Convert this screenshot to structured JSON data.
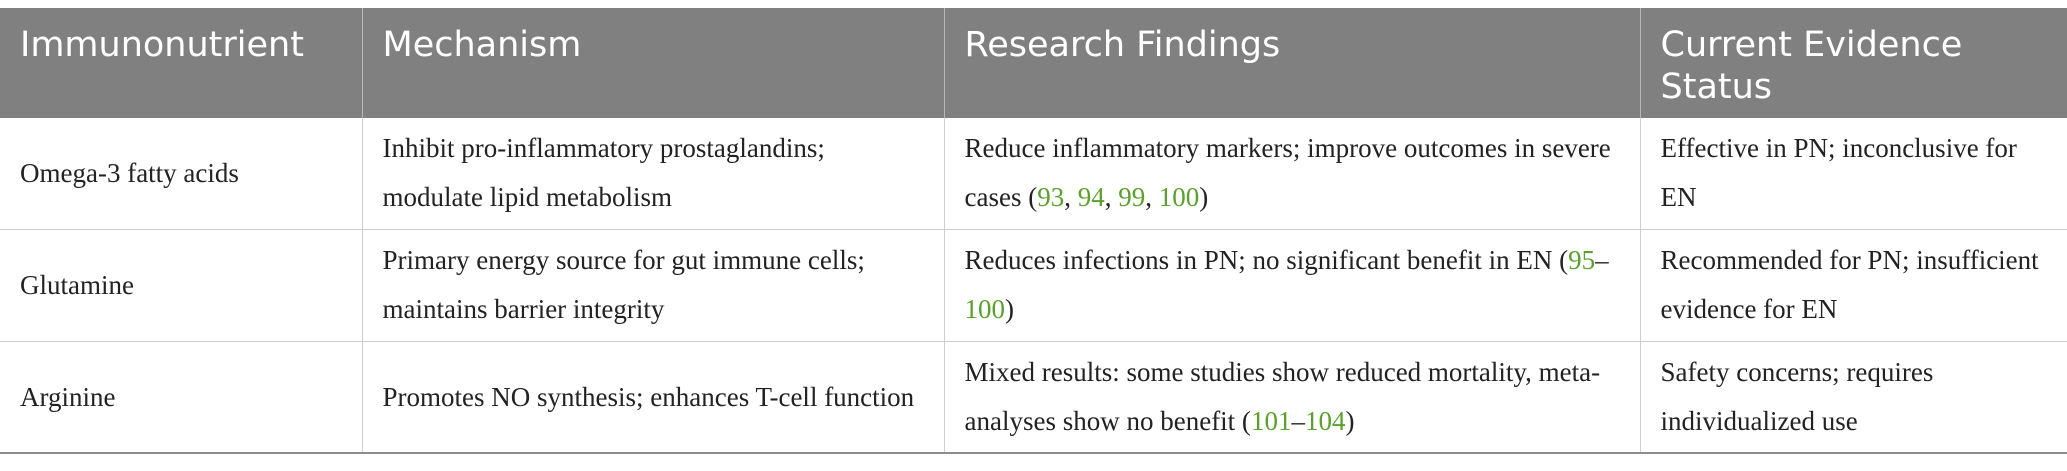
{
  "headers": [
    "Immunonutrient",
    "Mechanism",
    "Research Findings",
    "Current Evidence Status"
  ],
  "colors": {
    "header_bg": "#808080",
    "header_text": "#ffffff",
    "ref_link": "#5aa02c"
  },
  "rows": [
    {
      "immunonutrient": "Omega-3 fatty acids",
      "mechanism": "Inhibit pro-inflammatory prostaglandins; modulate lipid metabolism",
      "findings": {
        "text": "Reduce inflammatory markers; improve outcomes in severe cases (",
        "refs": [
          "93",
          "94",
          "99",
          "100"
        ],
        "close": ")"
      },
      "status": "Effective in PN; inconclusive for EN"
    },
    {
      "immunonutrient": "Glutamine",
      "mechanism": "Primary energy source for gut immune cells; maintains barrier integrity",
      "findings": {
        "text": "Reduces infections in PN; no significant benefit in EN (",
        "refs": [
          "95",
          "100"
        ],
        "close": ")"
      },
      "status": "Recommended for PN; insufficient evidence for EN"
    },
    {
      "immunonutrient": "Arginine",
      "mechanism": "Promotes NO synthesis; enhances T-cell function",
      "findings": {
        "text": "Mixed results: some studies show reduced mortality, meta-analyses show no benefit (",
        "refs": [
          "101",
          "104"
        ],
        "close": ")"
      },
      "status": "Safety concerns; requires individualized use"
    }
  ]
}
